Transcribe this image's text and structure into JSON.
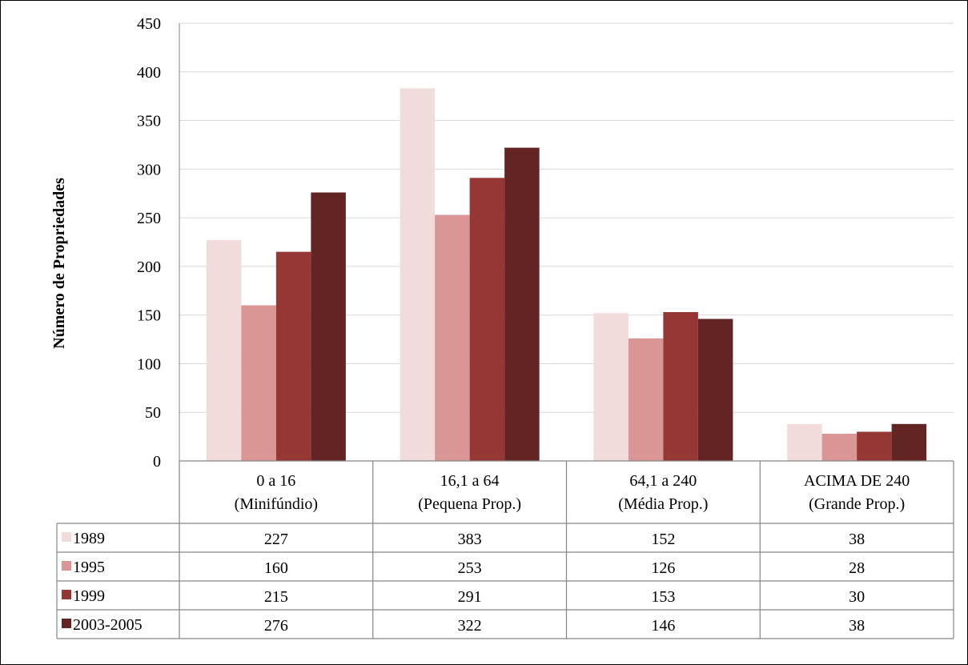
{
  "chart_data": {
    "type": "bar",
    "title": "",
    "xlabel": "",
    "ylabel": "Número de Propriedades",
    "ylim": [
      0,
      450
    ],
    "yticks": [
      0,
      50,
      100,
      150,
      200,
      250,
      300,
      350,
      400,
      450
    ],
    "grid": true,
    "legend": "data-table-rows",
    "categories": [
      [
        "0 a 16",
        "(Minifúndio)"
      ],
      [
        "16,1 a 64",
        "(Pequena Prop.)"
      ],
      [
        "64,1 a 240",
        "(Média Prop.)"
      ],
      [
        "ACIMA DE 240",
        "(Grande Prop.)"
      ]
    ],
    "series": [
      {
        "name": "1989",
        "color": "#f2dcdb",
        "values": [
          227,
          383,
          152,
          38
        ]
      },
      {
        "name": "1995",
        "color": "#d99694",
        "values": [
          160,
          253,
          126,
          28
        ]
      },
      {
        "name": "1999",
        "color": "#953735",
        "values": [
          215,
          291,
          153,
          30
        ]
      },
      {
        "name": "2003-2005",
        "color": "#632523",
        "values": [
          276,
          322,
          146,
          38
        ]
      }
    ]
  }
}
